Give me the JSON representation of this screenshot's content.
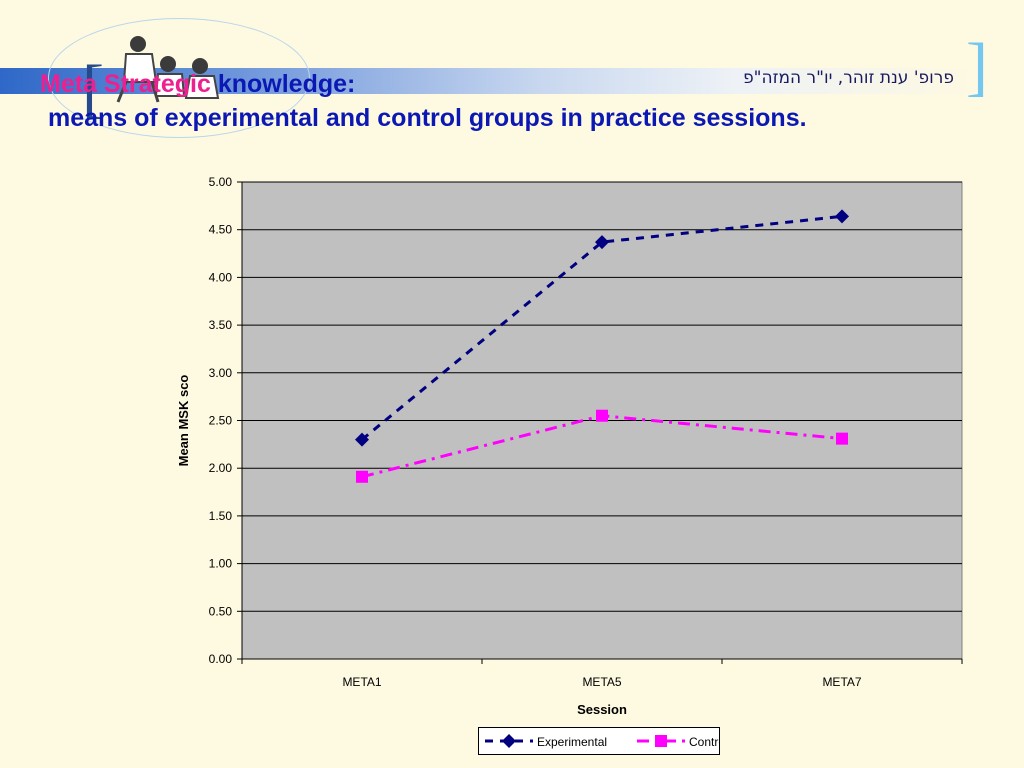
{
  "slide": {
    "title_accent": "Meta Strategic",
    "title_rest": "knowledge:",
    "subtitle": "means of experimental and control groups in practice sessions.",
    "author": "פרופ' ענת זוהר, יו\"ר המזה\"פ"
  },
  "colors": {
    "background": "#fef9e1",
    "title_accent": "#ee1f8e",
    "title": "#0b18b3",
    "plot_area": "#c0c0c0",
    "experimental": "#000080",
    "control": "#ff00ff"
  },
  "chart_data": {
    "type": "line",
    "categories": [
      "META1",
      "META5",
      "META7"
    ],
    "series": [
      {
        "name": "Experimental",
        "values": [
          2.3,
          4.37,
          4.64
        ],
        "color": "#000080",
        "marker": "diamond",
        "line": "dashed"
      },
      {
        "name": "Control",
        "values": [
          1.91,
          2.55,
          2.31
        ],
        "color": "#ff00ff",
        "marker": "square",
        "line": "dash-dot"
      }
    ],
    "xlabel": "Session",
    "ylabel": "Mean MSK sco",
    "ylim": [
      0,
      5
    ],
    "yticks": [
      "0.00",
      "0.50",
      "1.00",
      "1.50",
      "2.00",
      "2.50",
      "3.00",
      "3.50",
      "4.00",
      "4.50",
      "5.00"
    ],
    "grid": "horizontal",
    "legend": "bottom"
  }
}
